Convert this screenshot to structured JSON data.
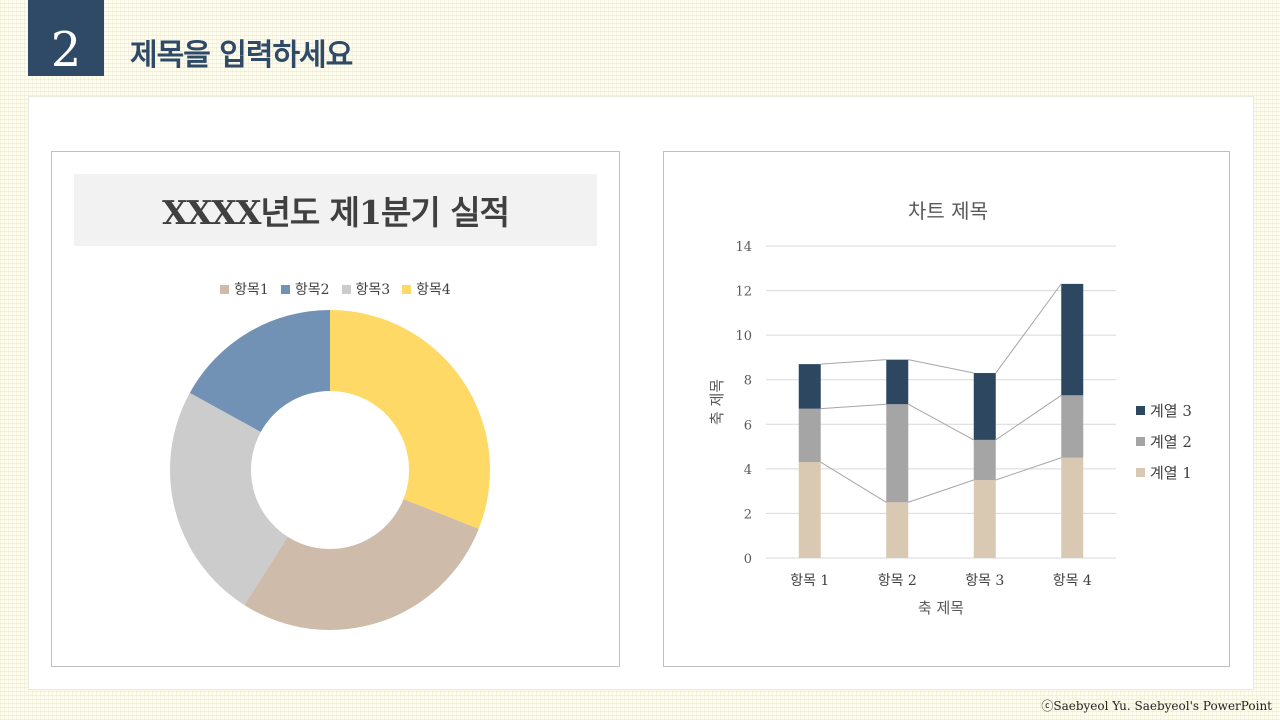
{
  "header": {
    "slide_number": "2",
    "title": "제목을 입력하세요"
  },
  "footer": {
    "copyright": "ⓒSaebyeol Yu. Saebyeol's PowerPoint"
  },
  "chart_data": [
    {
      "type": "pie",
      "variant": "doughnut",
      "title": "XXXX년도 제1분기 실적",
      "legend_position": "top",
      "categories": [
        "항목 1",
        "항목 2",
        "항목 3",
        "항목 4"
      ],
      "legend_labels": [
        "항목1",
        "항목2",
        "항목3",
        "항목4"
      ],
      "values": [
        28,
        17,
        24,
        31
      ],
      "colors": [
        "#cfbba9",
        "#7192b4",
        "#cccccc",
        "#ffd966"
      ]
    },
    {
      "type": "bar",
      "variant": "stacked",
      "title": "차트 제목",
      "xlabel": "축 제목",
      "ylabel": "축 제목",
      "ylim": [
        0,
        14
      ],
      "yticks": [
        0,
        2,
        4,
        6,
        8,
        10,
        12,
        14
      ],
      "grid": true,
      "series_lines": true,
      "legend_position": "right",
      "categories": [
        "항목 1",
        "항목 2",
        "항목 3",
        "항목 4"
      ],
      "series": [
        {
          "name": "계열 1",
          "values": [
            4.3,
            2.5,
            3.5,
            4.5
          ],
          "color": "#d9c9b2"
        },
        {
          "name": "계열 2",
          "values": [
            2.4,
            4.4,
            1.8,
            2.8
          ],
          "color": "#a5a5a5"
        },
        {
          "name": "계열 3",
          "values": [
            2.0,
            2.0,
            3.0,
            5.0
          ],
          "color": "#2e4761"
        }
      ]
    }
  ]
}
